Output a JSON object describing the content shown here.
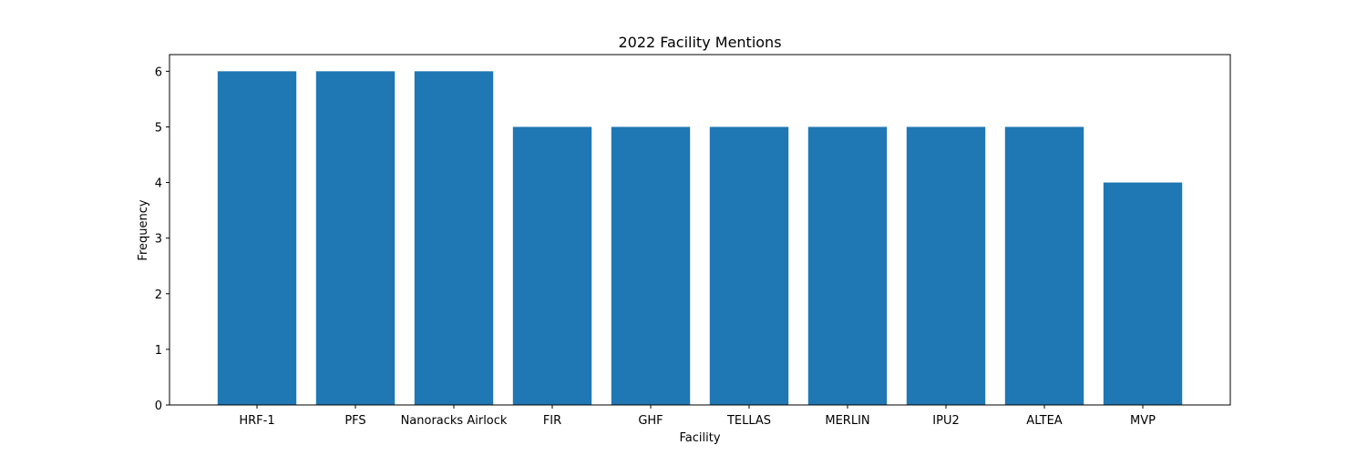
{
  "chart_data": {
    "type": "bar",
    "title": "2022 Facility Mentions",
    "xlabel": "Facility",
    "ylabel": "Frequency",
    "categories": [
      "HRF-1",
      "PFS",
      "Nanoracks Airlock",
      "FIR",
      "GHF",
      "TELLAS",
      "MERLIN",
      "IPU2",
      "ALTEA",
      "MVP"
    ],
    "values": [
      6,
      6,
      6,
      5,
      5,
      5,
      5,
      5,
      5,
      4
    ],
    "ylim": [
      0,
      6.3
    ],
    "yticks": [
      0,
      1,
      2,
      3,
      4,
      5,
      6
    ],
    "bar_color": "#1f77b4",
    "grid": false,
    "legend": "none"
  }
}
